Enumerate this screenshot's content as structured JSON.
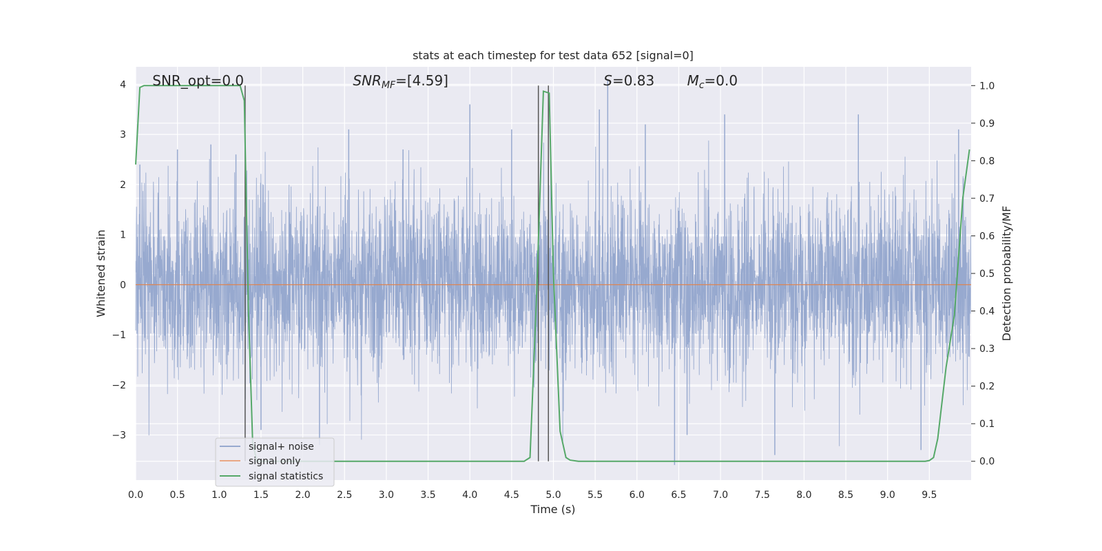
{
  "chart_data": {
    "type": "line",
    "title": "stats at each timestep for test data 652 [signal=0]",
    "xlabel": "Time (s)",
    "ylabel": "Whitened strain",
    "ylabel_right": "Detection probability/MF",
    "xlim": [
      0,
      10
    ],
    "ylim": [
      -3.9,
      4.35
    ],
    "ylim_right": [
      -0.05,
      1.05
    ],
    "x_ticks": [
      0,
      0.5,
      1,
      1.5,
      2,
      2.5,
      3,
      3.5,
      4,
      4.5,
      5,
      5.5,
      6,
      6.5,
      7,
      7.5,
      8,
      8.5,
      9,
      9.5
    ],
    "x_tick_labels": [
      "0.0",
      "0.5",
      "1.0",
      "1.5",
      "2.0",
      "2.5",
      "3.0",
      "3.5",
      "4.0",
      "4.5",
      "5.0",
      "5.5",
      "6.0",
      "6.5",
      "7.0",
      "7.5",
      "8.0",
      "8.5",
      "9.0",
      "9.5"
    ],
    "y_ticks": [
      -3,
      -2,
      -1,
      0,
      1,
      2,
      3,
      4
    ],
    "y_tick_labels": [
      "−3",
      "−2",
      "−1",
      "0",
      "1",
      "2",
      "3",
      "4"
    ],
    "y_right_ticks": [
      0,
      0.1,
      0.2,
      0.3,
      0.4,
      0.5,
      0.6,
      0.7,
      0.8,
      0.9,
      1.0
    ],
    "y_right_tick_labels": [
      "0.0",
      "0.1",
      "0.2",
      "0.3",
      "0.4",
      "0.5",
      "0.6",
      "0.7",
      "0.8",
      "0.9",
      "1.0"
    ],
    "grid": true,
    "legend_position": "bottom-left",
    "background_color": "#eaeaf2",
    "series": [
      {
        "name": "signal+ noise",
        "axis": "left",
        "color": "#97a9cf",
        "style": "dense noise, std ~0.9",
        "notable_peaks": [
          {
            "x": 0.05,
            "y": 2.4
          },
          {
            "x": 0.5,
            "y": 2.7
          },
          {
            "x": 0.9,
            "y": 2.8
          },
          {
            "x": 1.2,
            "y": 2.6
          },
          {
            "x": 1.5,
            "y": -2.9
          },
          {
            "x": 2.2,
            "y": -3.2
          },
          {
            "x": 2.55,
            "y": 3.1
          },
          {
            "x": 3.2,
            "y": 2.7
          },
          {
            "x": 4.0,
            "y": 3.6
          },
          {
            "x": 4.5,
            "y": 3.1
          },
          {
            "x": 5.55,
            "y": 3.5
          },
          {
            "x": 5.65,
            "y": 4.1
          },
          {
            "x": 6.1,
            "y": 3.2
          },
          {
            "x": 6.45,
            "y": -3.6
          },
          {
            "x": 6.6,
            "y": -3.0
          },
          {
            "x": 7.05,
            "y": 3.4
          },
          {
            "x": 7.65,
            "y": -3.4
          },
          {
            "x": 8.65,
            "y": 3.4
          },
          {
            "x": 9.4,
            "y": -3.3
          },
          {
            "x": 9.85,
            "y": 3.1
          }
        ]
      },
      {
        "name": "signal only",
        "axis": "left",
        "color": "#dd8452",
        "x": [
          0,
          10
        ],
        "y": [
          0,
          0
        ]
      },
      {
        "name": "signal statistics",
        "axis": "right",
        "color": "#55a868",
        "x": [
          0,
          0.05,
          0.1,
          0.2,
          0.5,
          1.0,
          1.25,
          1.3,
          1.35,
          1.4,
          1.45,
          1.5,
          2.0,
          3.0,
          4.0,
          4.5,
          4.65,
          4.72,
          4.8,
          4.88,
          4.95,
          5.0,
          5.08,
          5.15,
          5.2,
          5.3,
          6.0,
          7.0,
          8.0,
          9.0,
          9.45,
          9.5,
          9.55,
          9.6,
          9.7,
          9.8,
          9.9,
          9.98
        ],
        "y": [
          0.79,
          0.995,
          1.0,
          1.0,
          1.0,
          1.0,
          1.0,
          0.96,
          0.4,
          0.05,
          0.0,
          0.0,
          0.0,
          0.0,
          0.0,
          0.0,
          0.0,
          0.01,
          0.45,
          0.985,
          0.98,
          0.5,
          0.08,
          0.01,
          0.003,
          0.0,
          0.0,
          0.0,
          0.0,
          0.0,
          0.0,
          0.002,
          0.01,
          0.06,
          0.25,
          0.39,
          0.7,
          0.83
        ]
      }
    ],
    "vertical_lines": [
      1.31,
      4.82,
      4.94
    ],
    "vertical_line_color": "#555555",
    "annotations": {
      "snr_opt": {
        "label": "SNR_opt=0.0",
        "x": 0.2
      },
      "snr_mf": {
        "prefix": "SNR",
        "sub": "MF",
        "suffix": "=[4.59]",
        "x": 2.6
      },
      "s": {
        "prefix": "S",
        "suffix": "=0.83",
        "x": 5.6
      },
      "mc": {
        "prefix": "M",
        "sub": "c",
        "suffix": "=0.0",
        "x": 6.6
      }
    }
  }
}
